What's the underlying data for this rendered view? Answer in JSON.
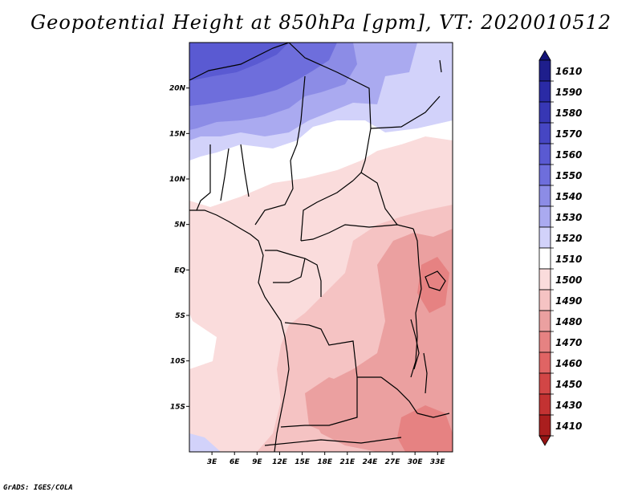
{
  "title": "Geopotential Height at 850hPa [gpm], VT: 2020010512",
  "footer": "GrADS: IGES/COLA",
  "map": {
    "region": "Central and Southern Africa",
    "lon_range": [
      0,
      35
    ],
    "lat_range": [
      -20,
      25
    ],
    "lat_ticks": [
      {
        "value": 20,
        "label": "20N"
      },
      {
        "value": 15,
        "label": "15N"
      },
      {
        "value": 10,
        "label": "10N"
      },
      {
        "value": 5,
        "label": "5N"
      },
      {
        "value": 0,
        "label": "EQ"
      },
      {
        "value": -5,
        "label": "5S"
      },
      {
        "value": -10,
        "label": "10S"
      },
      {
        "value": -15,
        "label": "15S"
      }
    ],
    "lon_ticks": [
      {
        "value": 3,
        "label": "3E"
      },
      {
        "value": 6,
        "label": "6E"
      },
      {
        "value": 9,
        "label": "9E"
      },
      {
        "value": 12,
        "label": "12E"
      },
      {
        "value": 15,
        "label": "15E"
      },
      {
        "value": 18,
        "label": "18E"
      },
      {
        "value": 21,
        "label": "21E"
      },
      {
        "value": 24,
        "label": "24E"
      },
      {
        "value": 27,
        "label": "27E"
      },
      {
        "value": 30,
        "label": "30E"
      },
      {
        "value": 33,
        "label": "33E"
      }
    ]
  },
  "colorbar": {
    "levels": [
      {
        "label": "1610",
        "color": "#1e1e8c"
      },
      {
        "label": "1590",
        "color": "#2a2aa5"
      },
      {
        "label": "1580",
        "color": "#3737b4"
      },
      {
        "label": "1570",
        "color": "#4646c3"
      },
      {
        "label": "1560",
        "color": "#5a5ad2"
      },
      {
        "label": "1550",
        "color": "#6e6edc"
      },
      {
        "label": "1540",
        "color": "#8c8ce6"
      },
      {
        "label": "1530",
        "color": "#aaaaf0"
      },
      {
        "label": "1520",
        "color": "#d2d2fa"
      },
      {
        "label": "1510",
        "color": "#ffffff"
      },
      {
        "label": "1500",
        "color": "#fadcdc"
      },
      {
        "label": "1490",
        "color": "#f5c3c3"
      },
      {
        "label": "1480",
        "color": "#eba0a0"
      },
      {
        "label": "1470",
        "color": "#e68282"
      },
      {
        "label": "1460",
        "color": "#e06464"
      },
      {
        "label": "1450",
        "color": "#d24646"
      },
      {
        "label": "1430",
        "color": "#c33232"
      },
      {
        "label": "1410",
        "color": "#aa1e1e"
      }
    ],
    "over_color": "#141478",
    "under_color": "#961414"
  },
  "field_colors": {
    "c1560": "#5a5ad2",
    "c1550": "#6e6edc",
    "c1540": "#8c8ce6",
    "c1530": "#aaaaf0",
    "c1520": "#d2d2fa",
    "c1510": "#ffffff",
    "c1500": "#fadcdc",
    "c1490": "#f5c3c3",
    "c1480": "#eba0a0",
    "c1470": "#e68282"
  }
}
